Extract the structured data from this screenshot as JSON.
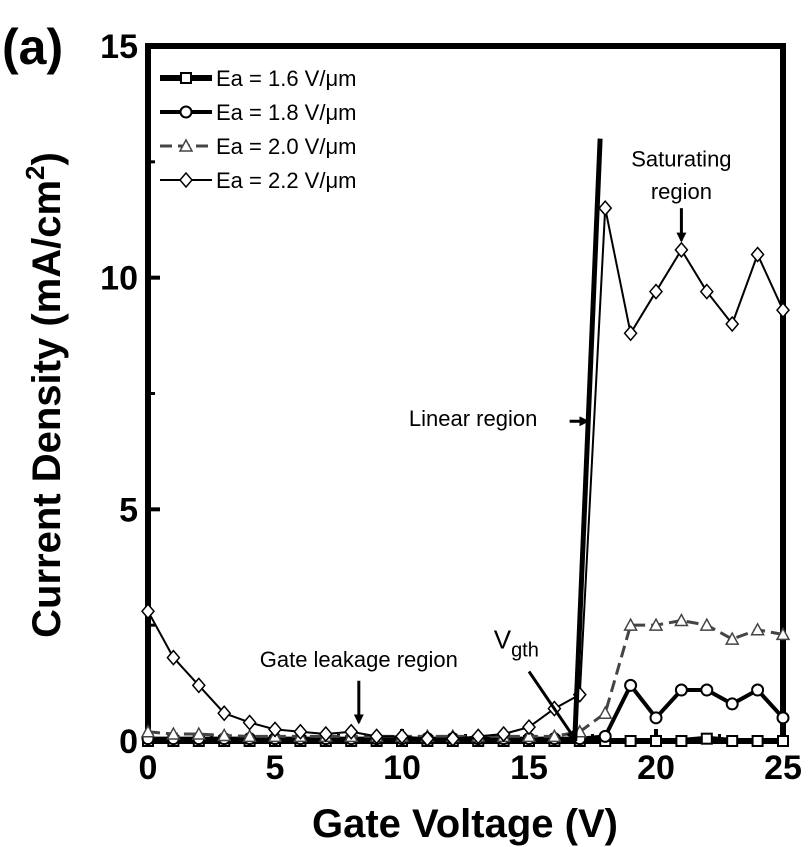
{
  "chart_data": {
    "type": "line",
    "panel_label": "(a)",
    "title": "",
    "xlabel": "Gate Voltage (V)",
    "ylabel": "Current Density (mA/cm²)",
    "ylabel_parts": {
      "main": "Current Density (mA/cm",
      "sup": "2",
      "tail": ")"
    },
    "xlim": [
      0,
      25
    ],
    "ylim": [
      0,
      15
    ],
    "xticks": [
      0,
      5,
      10,
      15,
      20,
      25
    ],
    "yticks": [
      0,
      5,
      10,
      15
    ],
    "grid": false,
    "legend_position": "top-left",
    "series": [
      {
        "name": "Ea = 1.6 V/μm",
        "x": [
          0,
          1,
          2,
          3,
          4,
          5,
          6,
          7,
          8,
          9,
          10,
          11,
          12,
          13,
          14,
          15,
          16,
          17,
          18,
          19,
          20,
          21,
          22,
          23,
          24,
          25
        ],
        "values": [
          0,
          0,
          0,
          0,
          0,
          0,
          0,
          0,
          0,
          0,
          0,
          0,
          0,
          0,
          0,
          0,
          0,
          0,
          0,
          0,
          0,
          0,
          0.05,
          0,
          0,
          0
        ]
      },
      {
        "name": "Ea = 1.8 V/μm",
        "x": [
          0,
          1,
          2,
          3,
          4,
          5,
          6,
          7,
          8,
          9,
          10,
          11,
          12,
          13,
          14,
          15,
          16,
          17,
          18,
          19,
          20,
          21,
          22,
          23,
          24,
          25
        ],
        "values": [
          0.05,
          0.05,
          0.05,
          0.05,
          0.05,
          0.05,
          0.05,
          0.05,
          0.05,
          0.05,
          0.05,
          0.05,
          0.05,
          0.05,
          0.05,
          0.05,
          0.05,
          0.05,
          0.1,
          1.2,
          0.5,
          1.1,
          1.1,
          0.8,
          1.1,
          0.5
        ]
      },
      {
        "name": "Ea = 2.0 V/μm",
        "x": [
          0,
          1,
          2,
          3,
          4,
          5,
          6,
          7,
          8,
          9,
          10,
          11,
          12,
          13,
          14,
          15,
          16,
          17,
          18,
          19,
          20,
          21,
          22,
          23,
          24,
          25
        ],
        "values": [
          0.2,
          0.15,
          0.15,
          0.12,
          0.1,
          0.1,
          0.1,
          0.1,
          0.1,
          0.1,
          0.1,
          0.1,
          0.1,
          0.1,
          0.1,
          0.1,
          0.1,
          0.2,
          0.6,
          2.5,
          2.5,
          2.6,
          2.5,
          2.2,
          2.4,
          2.3
        ]
      },
      {
        "name": "Ea = 2.2 V/μm",
        "x": [
          0,
          1,
          2,
          3,
          4,
          5,
          6,
          7,
          8,
          9,
          10,
          11,
          12,
          13,
          14,
          15,
          16,
          17,
          18,
          19,
          20,
          21,
          22,
          23,
          24,
          25
        ],
        "values": [
          2.8,
          1.8,
          1.2,
          0.6,
          0.4,
          0.25,
          0.2,
          0.15,
          0.2,
          0.1,
          0.1,
          0.05,
          0.05,
          0.1,
          0.15,
          0.3,
          0.7,
          1.0,
          11.5,
          8.8,
          9.7,
          10.6,
          9.7,
          9.0,
          10.5,
          9.3
        ]
      }
    ],
    "linear_region_line": {
      "x": [
        16.8,
        17.8
      ],
      "y": [
        0,
        13.0
      ]
    },
    "annotations": [
      {
        "text": "Saturating",
        "x": 21,
        "y": 12.4
      },
      {
        "text": "region",
        "x": 21,
        "y": 11.7
      },
      {
        "text": "Linear region",
        "x": 12.8,
        "y": 6.8
      },
      {
        "text": "Gate leakage region",
        "x": 8.3,
        "y": 1.6
      },
      {
        "text": "V",
        "sub": "gth",
        "x": 14.5,
        "y": 2.0
      }
    ],
    "arrows": [
      {
        "from": [
          21,
          11.5
        ],
        "to": [
          21,
          10.8
        ]
      },
      {
        "from": [
          16.6,
          6.9
        ],
        "to": [
          17.3,
          6.9
        ]
      },
      {
        "from": [
          8.3,
          1.3
        ],
        "to": [
          8.3,
          0.4
        ]
      },
      {
        "from": [
          15.0,
          1.5
        ],
        "to": [
          16.8,
          0.05
        ]
      }
    ]
  }
}
